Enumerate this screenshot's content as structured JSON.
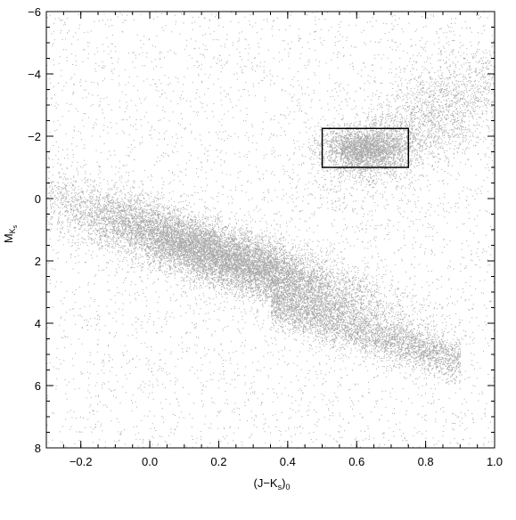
{
  "chart_data": {
    "type": "scatter",
    "title": "",
    "xlabel": {
      "main": "(J−K",
      "sub_s": "s",
      "close": ")",
      "sub_0": "0"
    },
    "ylabel": {
      "main": "M",
      "sub_K": "K",
      "sub_s": "s"
    },
    "xlim": [
      -0.3,
      1.0
    ],
    "ylim_top": -6,
    "ylim_bottom": 8,
    "y_inverted": true,
    "x_ticks": [
      {
        "value": -0.2,
        "label": "−0.2"
      },
      {
        "value": 0.0,
        "label": "0.0"
      },
      {
        "value": 0.2,
        "label": "0.2"
      },
      {
        "value": 0.4,
        "label": "0.4"
      },
      {
        "value": 0.6,
        "label": "0.6"
      },
      {
        "value": 0.8,
        "label": "0.8"
      },
      {
        "value": 1.0,
        "label": "1.0"
      }
    ],
    "y_ticks": [
      {
        "value": -6,
        "label": "−6"
      },
      {
        "value": -4,
        "label": "−4"
      },
      {
        "value": -2,
        "label": "−2"
      },
      {
        "value": 0,
        "label": "0"
      },
      {
        "value": 2,
        "label": "2"
      },
      {
        "value": 4,
        "label": "4"
      },
      {
        "value": 6,
        "label": "6"
      },
      {
        "value": 8,
        "label": "8"
      }
    ],
    "x_minor_step": 0.05,
    "y_minor_step": 0.5,
    "point_color": "#8c8c8c",
    "selection_box": {
      "x": [
        0.5,
        0.75
      ],
      "y": [
        -2.25,
        -1.0
      ]
    },
    "grid": false,
    "legend": "none",
    "point_distribution": [
      {
        "component": "main sequence",
        "weight": 0.5,
        "x_center": 0.2,
        "x_sd": 0.12,
        "y_center": 1.8,
        "y_sd": 1.0,
        "slope": 5.0
      },
      {
        "component": "lower sequence",
        "weight": 0.14,
        "x_range": [
          0.35,
          0.9
        ],
        "y_center_at_start": 3.4,
        "y_slope": 3.3,
        "y_sd": 0.35
      },
      {
        "component": "red clump",
        "weight": 0.1,
        "x_center": 0.62,
        "x_sd": 0.06,
        "y_center": -1.6,
        "y_sd": 0.35
      },
      {
        "component": "giant branch",
        "weight": 0.1,
        "x_center": 0.8,
        "x_sd": 0.1,
        "y_center": -2.5,
        "y_sd": 1.2,
        "slope": -12.0
      },
      {
        "component": "background",
        "weight": 0.16,
        "x_range": [
          -0.3,
          1.0
        ],
        "y_range": [
          -6,
          8
        ]
      }
    ],
    "point_count": 26000
  }
}
